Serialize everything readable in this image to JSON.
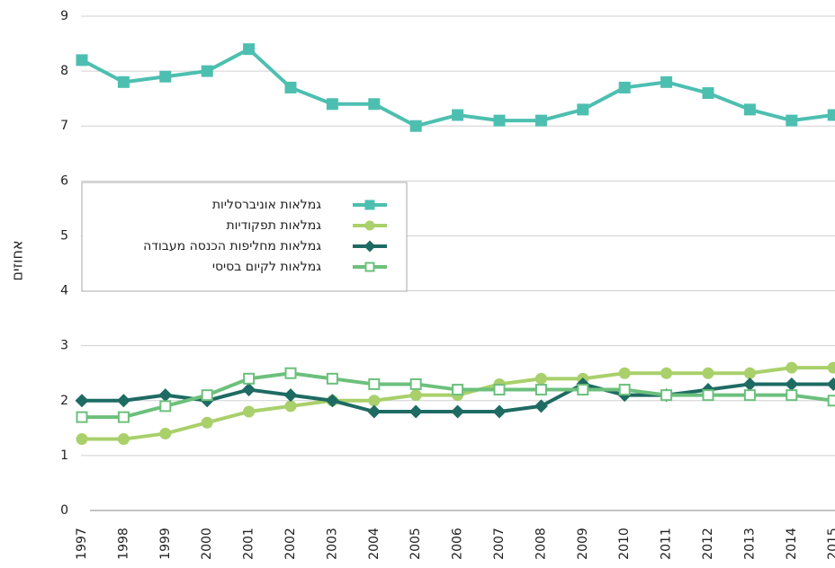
{
  "chart_data": {
    "type": "line",
    "y_label": "אחוזים",
    "categories": [
      "1997",
      "1998",
      "1999",
      "2000",
      "2001",
      "2002",
      "2003",
      "2004",
      "2005",
      "2006",
      "2007",
      "2008",
      "2009",
      "2010",
      "2011",
      "2012",
      "2013",
      "2014",
      "2015"
    ],
    "ylim": [
      0,
      9
    ],
    "yticks": [
      0,
      1,
      2,
      3,
      4,
      5,
      6,
      7,
      8,
      9
    ],
    "grid": true,
    "legend": "upper-left",
    "series": [
      {
        "name": "גמלאות אוניברסליות",
        "color": "#4dbfb0",
        "marker": "square",
        "values": [
          8.2,
          7.8,
          7.9,
          8.0,
          8.4,
          7.7,
          7.4,
          7.4,
          7.0,
          7.2,
          7.1,
          7.1,
          7.3,
          7.7,
          7.8,
          7.6,
          7.3,
          7.1,
          7.2
        ]
      },
      {
        "name": "גמלאות תפקודיות",
        "color": "#a9d06b",
        "marker": "circle",
        "values": [
          1.3,
          1.3,
          1.4,
          1.6,
          1.8,
          1.9,
          2.0,
          2.0,
          2.1,
          2.1,
          2.3,
          2.4,
          2.4,
          2.5,
          2.5,
          2.5,
          2.5,
          2.6,
          2.6
        ]
      },
      {
        "name": "גמלאות מחליפות הכנסה מעבודה",
        "color": "#1e6b63",
        "marker": "diamond",
        "values": [
          2.0,
          2.0,
          2.1,
          2.0,
          2.2,
          2.1,
          2.0,
          1.8,
          1.8,
          1.8,
          1.8,
          1.9,
          2.3,
          2.1,
          2.1,
          2.2,
          2.3,
          2.3,
          2.3
        ]
      },
      {
        "name": "גמלאות לקיום בסיסי",
        "color": "#6cc07c",
        "marker": "hollow-square",
        "values": [
          1.7,
          1.7,
          1.9,
          2.1,
          2.4,
          2.5,
          2.4,
          2.3,
          2.3,
          2.2,
          2.2,
          2.2,
          2.2,
          2.2,
          2.1,
          2.1,
          2.1,
          2.1,
          2.0
        ]
      }
    ]
  }
}
